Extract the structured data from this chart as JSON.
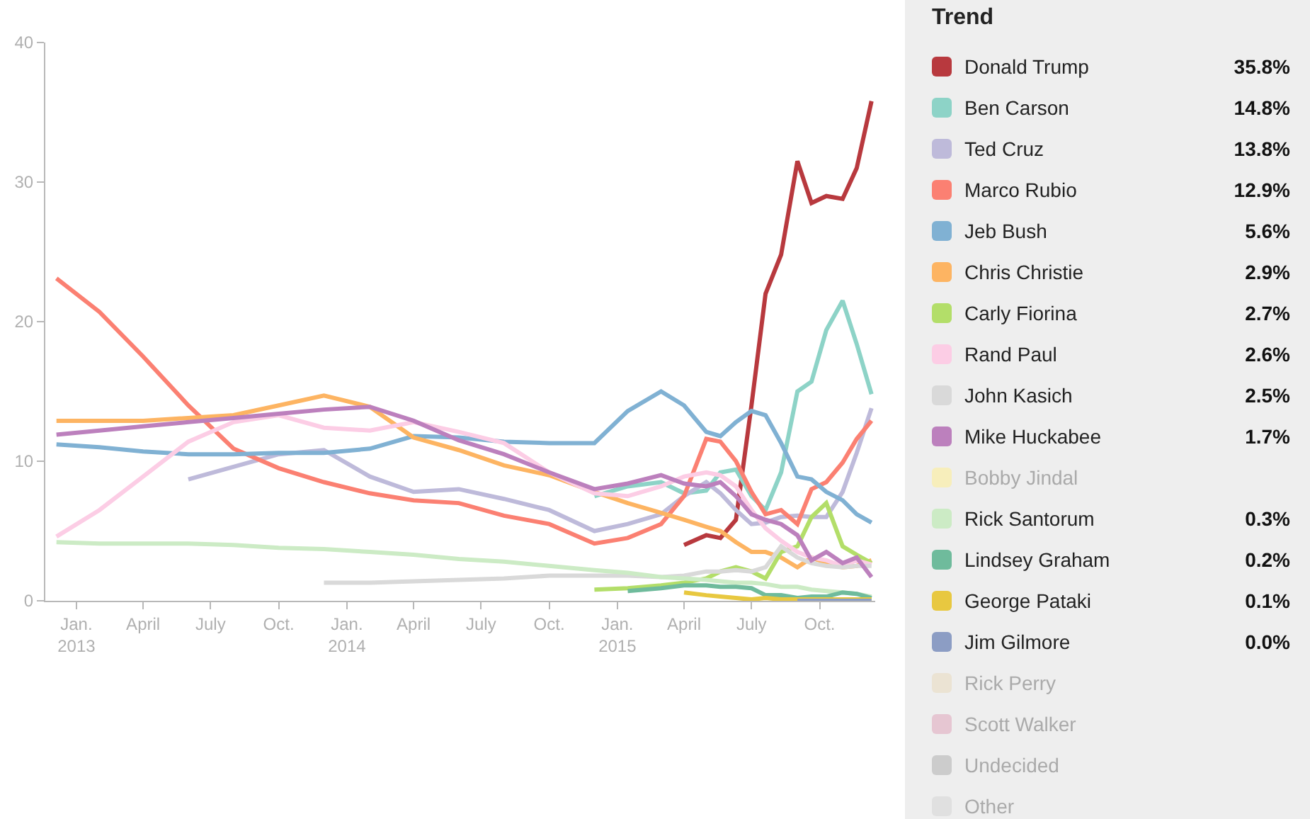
{
  "chart_data": {
    "type": "line",
    "legend_title": "Trend",
    "legend": "right",
    "grid": false,
    "marker": "none",
    "line_style": "solid",
    "x": [
      "2012-12-05",
      "2013-02-01",
      "2013-04-01",
      "2013-06-01",
      "2013-08-01",
      "2013-10-01",
      "2013-12-01",
      "2014-02-01",
      "2014-04-01",
      "2014-06-01",
      "2014-08-01",
      "2014-10-01",
      "2014-12-01",
      "2015-01-15",
      "2015-03-01",
      "2015-04-01",
      "2015-05-01",
      "2015-05-20",
      "2015-06-10",
      "2015-07-01",
      "2015-07-20",
      "2015-08-10",
      "2015-09-01",
      "2015-09-20",
      "2015-10-10",
      "2015-11-01",
      "2015-11-20",
      "2015-12-10"
    ],
    "xlim": [
      "2012-11-20",
      "2015-12-15"
    ],
    "xticks": [
      {
        "value": "2013-01-01",
        "label": "Jan.\n2013"
      },
      {
        "value": "2013-04-01",
        "label": "April"
      },
      {
        "value": "2013-07-01",
        "label": "July"
      },
      {
        "value": "2013-10-01",
        "label": "Oct."
      },
      {
        "value": "2014-01-01",
        "label": "Jan.\n2014"
      },
      {
        "value": "2014-04-01",
        "label": "April"
      },
      {
        "value": "2014-07-01",
        "label": "July"
      },
      {
        "value": "2014-10-01",
        "label": "Oct."
      },
      {
        "value": "2015-01-01",
        "label": "Jan.\n2015"
      },
      {
        "value": "2015-04-01",
        "label": "April"
      },
      {
        "value": "2015-07-01",
        "label": "July"
      },
      {
        "value": "2015-10-01",
        "label": "Oct."
      }
    ],
    "ylim": [
      0,
      40
    ],
    "yticks": [
      0,
      10,
      20,
      30,
      40
    ],
    "annotations": [
      "35.8%",
      "14.8%",
      "13.8%",
      "12.9%",
      "5.6%",
      "2.9%",
      "2.7%",
      "2.6%",
      "2.5%",
      "1.7%",
      "0.3%",
      "0.2%",
      "0.1%",
      "0.0%"
    ],
    "series": [
      {
        "name": "Donald Trump",
        "color": "#b8393e",
        "values": [
          null,
          null,
          null,
          null,
          null,
          null,
          null,
          null,
          null,
          null,
          null,
          null,
          null,
          null,
          null,
          4.0,
          4.7,
          4.5,
          5.8,
          14,
          22,
          24.8,
          31.5,
          28.5,
          29,
          28.8,
          31,
          35.8
        ]
      },
      {
        "name": "Ben Carson",
        "color": "#8dd3c7",
        "values": [
          null,
          null,
          null,
          null,
          null,
          null,
          null,
          null,
          null,
          null,
          null,
          null,
          7.5,
          8.2,
          8.5,
          7.7,
          7.9,
          9.2,
          9.4,
          7.5,
          6.5,
          9.2,
          15,
          15.7,
          19.4,
          21.5,
          18.4,
          14.8
        ]
      },
      {
        "name": "Ted Cruz",
        "color": "#bebada",
        "values": [
          null,
          null,
          null,
          8.7,
          9.6,
          10.5,
          10.8,
          8.9,
          7.8,
          8.0,
          7.3,
          6.5,
          5.0,
          5.5,
          6.2,
          7.5,
          8.5,
          7.7,
          6.5,
          5.5,
          5.6,
          6.0,
          6.1,
          6.0,
          6.0,
          7.8,
          10.6,
          13.8
        ]
      },
      {
        "name": "Marco Rubio",
        "color": "#fb8072",
        "values": [
          23.1,
          20.7,
          17.5,
          14,
          10.9,
          9.5,
          8.5,
          7.7,
          7.2,
          7.0,
          6.1,
          5.5,
          4.1,
          4.5,
          5.5,
          7.5,
          11.6,
          11.4,
          10.0,
          7.8,
          6.2,
          6.5,
          5.5,
          8.0,
          8.5,
          9.9,
          11.6,
          12.9
        ]
      },
      {
        "name": "Jeb Bush",
        "color": "#80b1d3",
        "values": [
          11.2,
          11.0,
          10.7,
          10.5,
          10.5,
          10.6,
          10.6,
          10.9,
          11.8,
          11.7,
          11.4,
          11.3,
          11.3,
          13.6,
          15.0,
          14.0,
          12.1,
          11.8,
          12.8,
          13.6,
          13.3,
          11.3,
          8.9,
          8.7,
          7.8,
          7.2,
          6.2,
          5.6
        ]
      },
      {
        "name": "Chris Christie",
        "color": "#fdb462",
        "values": [
          12.9,
          12.9,
          12.9,
          13.1,
          13.3,
          14.0,
          14.7,
          13.9,
          11.7,
          10.8,
          9.7,
          9.0,
          7.8,
          7.0,
          6.3,
          5.8,
          5.3,
          5.0,
          4.2,
          3.5,
          3.5,
          3.1,
          2.4,
          3.1,
          2.7,
          2.4,
          2.5,
          2.9
        ]
      },
      {
        "name": "Carly Fiorina",
        "color": "#b3de69",
        "values": [
          null,
          null,
          null,
          null,
          null,
          null,
          null,
          null,
          null,
          null,
          null,
          null,
          0.8,
          0.9,
          1.1,
          1.3,
          1.6,
          2.1,
          2.4,
          2.1,
          1.6,
          3.5,
          3.9,
          6.0,
          7.0,
          3.9,
          3.3,
          2.7
        ]
      },
      {
        "name": "Rand Paul",
        "color": "#fccde5",
        "values": [
          4.6,
          6.5,
          8.9,
          11.4,
          12.8,
          13.3,
          12.4,
          12.2,
          12.8,
          12.1,
          11.3,
          9.2,
          7.7,
          7.5,
          8.2,
          8.9,
          9.2,
          9.0,
          8.2,
          6.5,
          5.2,
          4.3,
          3.5,
          3.1,
          2.9,
          2.5,
          2.9,
          2.6
        ]
      },
      {
        "name": "John Kasich",
        "color": "#d9d9d9",
        "values": [
          null,
          null,
          null,
          null,
          null,
          null,
          1.3,
          1.3,
          1.4,
          1.5,
          1.6,
          1.8,
          1.8,
          1.8,
          1.7,
          1.8,
          2.1,
          2.1,
          2.2,
          2.1,
          2.4,
          3.9,
          3.1,
          2.7,
          2.5,
          2.4,
          2.5,
          2.5
        ]
      },
      {
        "name": "Mike Huckabee",
        "color": "#bc80bd",
        "values": [
          11.9,
          12.2,
          12.5,
          12.8,
          13.1,
          13.4,
          13.7,
          13.9,
          12.9,
          11.5,
          10.5,
          9.2,
          8.0,
          8.4,
          9.0,
          8.4,
          8.2,
          8.5,
          7.5,
          6.2,
          5.8,
          5.5,
          4.7,
          2.9,
          3.5,
          2.7,
          3.1,
          1.7
        ]
      },
      {
        "name": "Bobby Jindal",
        "color": "#f7eebb",
        "values": [
          null,
          null,
          null,
          null,
          null,
          null,
          null,
          null,
          null,
          null,
          null,
          null,
          null,
          null,
          null,
          null,
          null,
          null,
          null,
          null,
          null,
          null,
          null,
          null,
          null,
          null,
          null,
          null
        ]
      },
      {
        "name": "Rick Santorum",
        "color": "#ccebc5",
        "values": [
          4.2,
          4.1,
          4.1,
          4.1,
          4.0,
          3.8,
          3.7,
          3.5,
          3.3,
          3.0,
          2.8,
          2.5,
          2.2,
          2.0,
          1.7,
          1.6,
          1.5,
          1.4,
          1.3,
          1.3,
          1.2,
          1.0,
          1.0,
          0.8,
          0.7,
          0.6,
          0.5,
          0.3
        ]
      },
      {
        "name": "Lindsey Graham",
        "color": "#6fbb9c",
        "values": [
          null,
          null,
          null,
          null,
          null,
          null,
          null,
          null,
          null,
          null,
          null,
          null,
          null,
          0.7,
          0.9,
          1.1,
          1.1,
          1.0,
          1.0,
          0.9,
          0.4,
          0.4,
          0.2,
          0.3,
          0.3,
          0.6,
          0.5,
          0.2
        ]
      },
      {
        "name": "George Pataki",
        "color": "#e8c840",
        "values": [
          null,
          null,
          null,
          null,
          null,
          null,
          null,
          null,
          null,
          null,
          null,
          null,
          null,
          null,
          null,
          0.6,
          0.4,
          0.3,
          0.2,
          0.1,
          0.2,
          0.1,
          0.1,
          0.1,
          0.1,
          0.1,
          0.1,
          0.1
        ]
      },
      {
        "name": "Jim Gilmore",
        "color": "#8c9dc4",
        "values": [
          null,
          null,
          null,
          null,
          null,
          null,
          null,
          null,
          null,
          null,
          null,
          null,
          null,
          null,
          null,
          null,
          null,
          null,
          null,
          null,
          null,
          null,
          0.0,
          0.0,
          0.0,
          0.0,
          0.0,
          0.0
        ]
      },
      {
        "name": "Rick Perry",
        "color": "#ebe3d3",
        "values": [
          null,
          null,
          null,
          null,
          null,
          null,
          null,
          null,
          null,
          null,
          null,
          null,
          null,
          null,
          null,
          null,
          null,
          null,
          null,
          null,
          null,
          null,
          null,
          null,
          null,
          null,
          null,
          null
        ]
      },
      {
        "name": "Scott Walker",
        "color": "#e6c6d2",
        "values": [
          null,
          null,
          null,
          null,
          null,
          null,
          null,
          null,
          null,
          null,
          null,
          null,
          null,
          null,
          null,
          null,
          null,
          null,
          null,
          null,
          null,
          null,
          null,
          null,
          null,
          null,
          null,
          null
        ]
      },
      {
        "name": "Undecided",
        "color": "#cccccc",
        "values": [
          null,
          null,
          null,
          null,
          null,
          null,
          null,
          null,
          null,
          null,
          null,
          null,
          null,
          null,
          null,
          null,
          null,
          null,
          null,
          null,
          null,
          null,
          null,
          null,
          null,
          null,
          null,
          null
        ]
      },
      {
        "name": "Other",
        "color": "#e0e0e0",
        "values": [
          null,
          null,
          null,
          null,
          null,
          null,
          null,
          null,
          null,
          null,
          null,
          null,
          null,
          null,
          null,
          null,
          null,
          null,
          null,
          null,
          null,
          null,
          null,
          null,
          null,
          null,
          null,
          null
        ]
      }
    ]
  }
}
